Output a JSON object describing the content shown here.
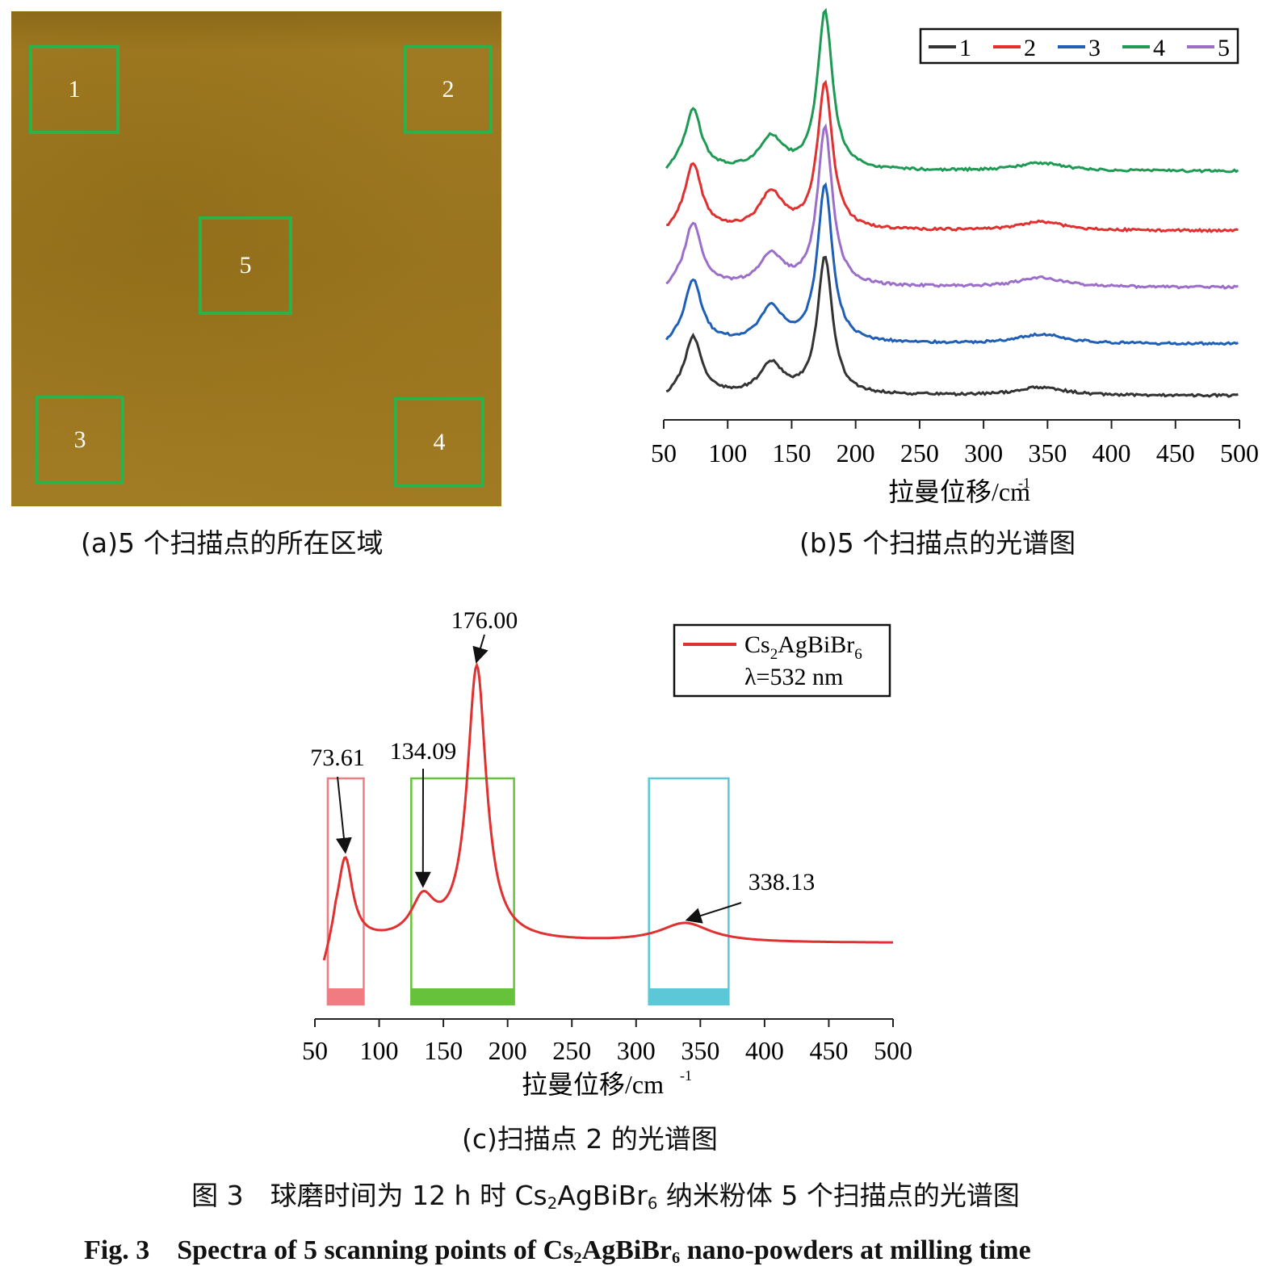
{
  "panel_a": {
    "boxes": [
      {
        "label": "1"
      },
      {
        "label": "2"
      },
      {
        "label": "3"
      },
      {
        "label": "4"
      },
      {
        "label": "5"
      }
    ],
    "caption": "(a)5 个扫描点的所在区域",
    "box_color": "#2fb14a"
  },
  "panel_b": {
    "caption": "(b)5 个扫描点的光谱图",
    "legend": [
      {
        "label": "1",
        "color": "#333333"
      },
      {
        "label": "2",
        "color": "#e03030"
      },
      {
        "label": "3",
        "color": "#1f5fb5"
      },
      {
        "label": "4",
        "color": "#1f9a55"
      },
      {
        "label": "5",
        "color": "#9b6fc9"
      }
    ],
    "xlabel": "拉曼位移/cm",
    "xlabel_sup": "-1",
    "xticks": [
      "50",
      "100",
      "150",
      "200",
      "250",
      "300",
      "350",
      "400",
      "450",
      "500"
    ]
  },
  "panel_c": {
    "caption": "(c)扫描点 2 的光谱图",
    "legend_compound": "Cs",
    "legend_sub1": "2",
    "legend_mid": "AgBiBr",
    "legend_sub2": "6",
    "legend_wavelength": "λ=532 nm",
    "line_color": "#e03030",
    "annotations": [
      "73.61",
      "134.09",
      "176.00",
      "338.13"
    ],
    "xlabel": "拉曼位移/cm",
    "xlabel_sup": "-1",
    "xticks": [
      "50",
      "100",
      "150",
      "200",
      "250",
      "300",
      "350",
      "400",
      "450",
      "500"
    ],
    "band_colors": [
      "#f07c82",
      "#66c23a",
      "#5cc7d6"
    ]
  },
  "figure": {
    "title_cn_prefix": "图 3　球磨时间为 12 h 时 Cs",
    "title_cn_sub1": "2",
    "title_cn_mid": "AgBiBr",
    "title_cn_sub2": "6",
    "title_cn_suffix": " 纳米粉体 5 个扫描点的光谱图",
    "title_en_prefix": "Fig. 3　Spectra of 5 scanning points of Cs",
    "title_en_sub1": "2",
    "title_en_mid": "AgBiBr",
    "title_en_sub2": "6",
    "title_en_suffix": " nano-powders at milling time"
  },
  "chart_data": [
    {
      "type": "line",
      "title": "",
      "xlabel": "拉曼位移/cm-1",
      "ylabel": "",
      "xlim": [
        50,
        500
      ],
      "grid": false,
      "legend_position": "top-right",
      "series": [
        {
          "name": "1",
          "peaks": [
            {
              "x": 73,
              "h": 0.42
            },
            {
              "x": 134,
              "h": 0.22
            },
            {
              "x": 176,
              "h": 1.0
            },
            {
              "x": 345,
              "h": 0.06
            }
          ]
        },
        {
          "name": "2",
          "peaks": [
            {
              "x": 73,
              "h": 0.45
            },
            {
              "x": 134,
              "h": 0.25
            },
            {
              "x": 176,
              "h": 1.0
            },
            {
              "x": 345,
              "h": 0.06
            }
          ]
        },
        {
          "name": "3",
          "peaks": [
            {
              "x": 73,
              "h": 0.4
            },
            {
              "x": 134,
              "h": 0.22
            },
            {
              "x": 176,
              "h": 1.0
            },
            {
              "x": 345,
              "h": 0.06
            }
          ]
        },
        {
          "name": "4",
          "peaks": [
            {
              "x": 73,
              "h": 0.38
            },
            {
              "x": 134,
              "h": 0.2
            },
            {
              "x": 176,
              "h": 1.0
            },
            {
              "x": 345,
              "h": 0.05
            }
          ]
        },
        {
          "name": "5",
          "peaks": [
            {
              "x": 73,
              "h": 0.4
            },
            {
              "x": 134,
              "h": 0.2
            },
            {
              "x": 176,
              "h": 1.0
            },
            {
              "x": 345,
              "h": 0.06
            }
          ]
        }
      ]
    },
    {
      "type": "line",
      "title": "",
      "xlabel": "拉曼位移/cm-1",
      "ylabel": "",
      "xlim": [
        50,
        500
      ],
      "grid": false,
      "legend_position": "top-right",
      "series": [
        {
          "name": "Cs2AgBiBr6 λ=532 nm",
          "peaks": [
            {
              "x": 73.61,
              "h": 0.3
            },
            {
              "x": 134.09,
              "h": 0.14
            },
            {
              "x": 176.0,
              "h": 1.0
            },
            {
              "x": 338.13,
              "h": 0.07
            }
          ]
        }
      ],
      "annotations": [
        73.61,
        134.09,
        176.0,
        338.13
      ],
      "highlight_ranges": [
        [
          60,
          88
        ],
        [
          125,
          205
        ],
        [
          310,
          372
        ]
      ]
    }
  ]
}
